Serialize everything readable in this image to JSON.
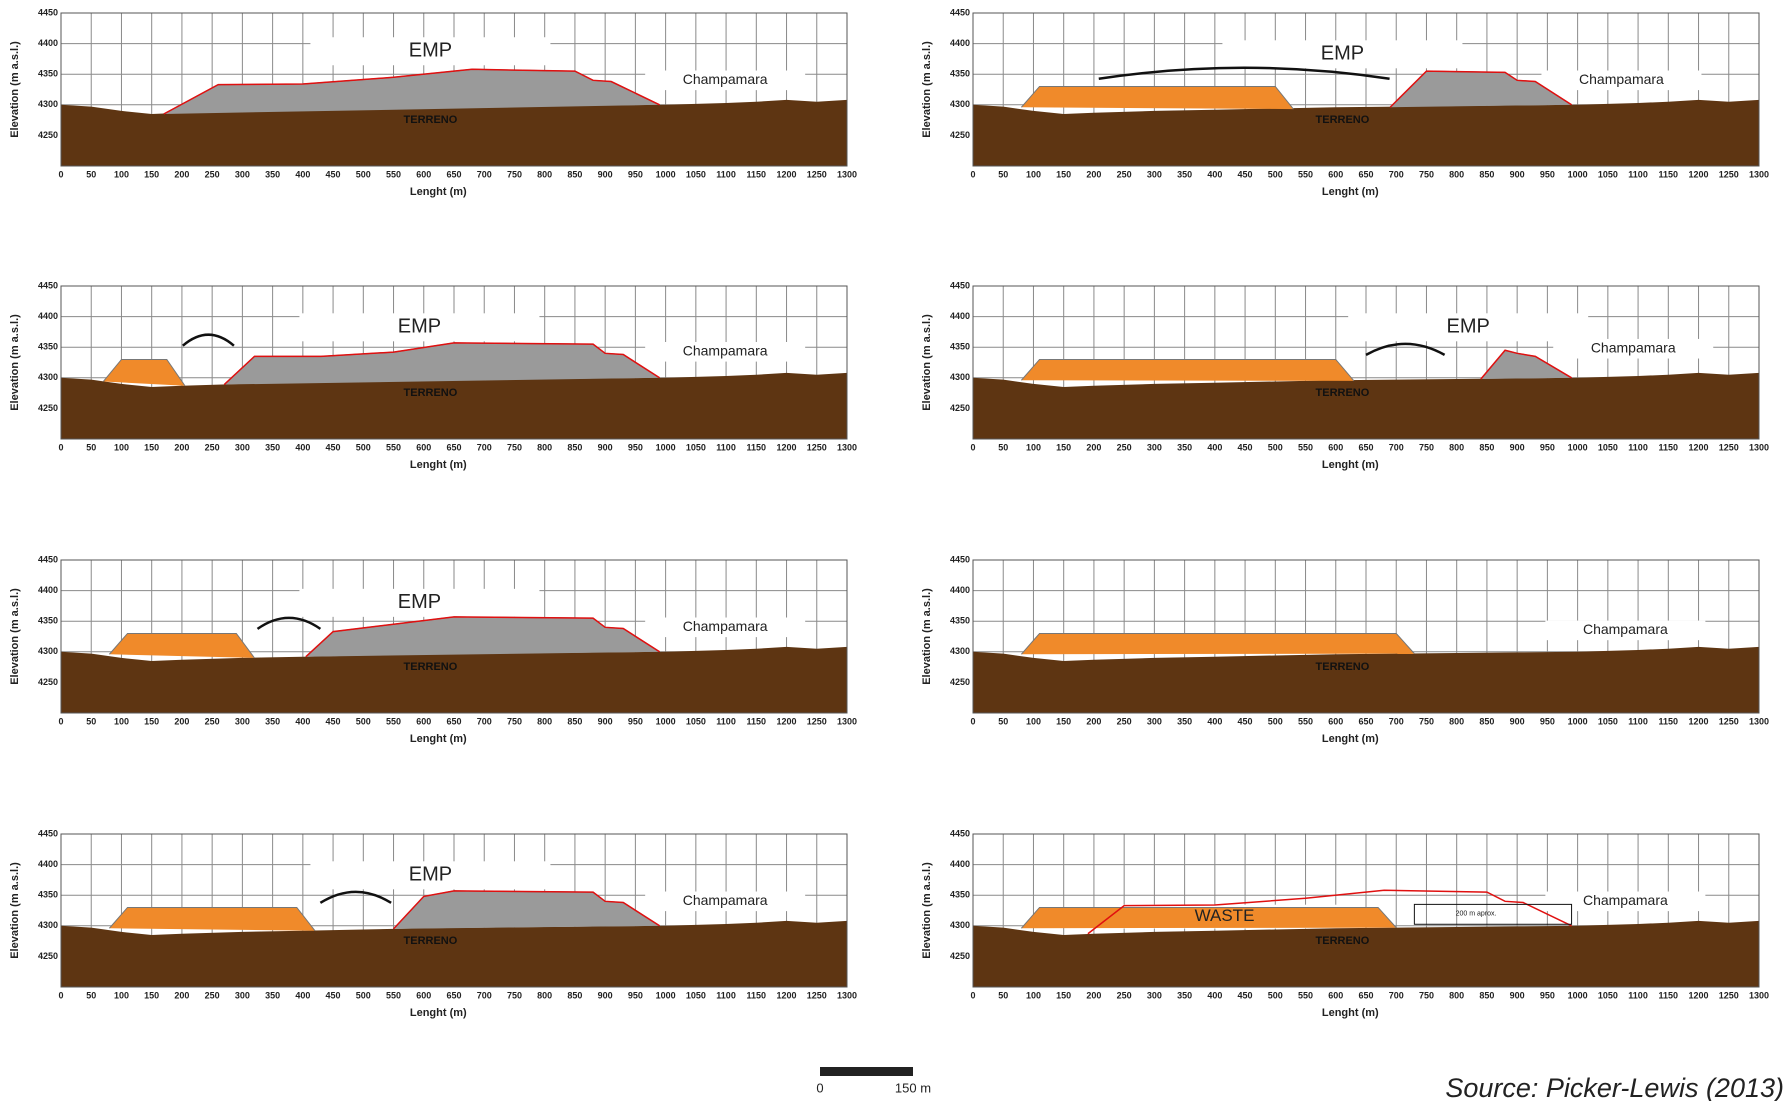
{
  "chart_data": [
    {
      "type": "section",
      "xlabel": "Lenght (m)",
      "ylabel": "Elevation (m a.s.l.)",
      "xlim": [
        0,
        1300
      ],
      "ylim": [
        4200,
        4450
      ],
      "xticks": [
        0,
        50,
        100,
        150,
        200,
        250,
        300,
        350,
        400,
        450,
        500,
        550,
        600,
        650,
        700,
        750,
        800,
        850,
        900,
        950,
        1000,
        1050,
        1100,
        1150,
        1200,
        1250,
        1300
      ],
      "yticks": [
        4250,
        4300,
        4350,
        4400,
        4450
      ],
      "ground": {
        "x": [
          0,
          50,
          100,
          150,
          200,
          300,
          400,
          500,
          600,
          700,
          800,
          900,
          1000,
          1100,
          1150,
          1200,
          1250,
          1300
        ],
        "y": [
          4300,
          4297,
          4290,
          4285,
          4287,
          4290,
          4292,
          4294,
          4296,
          4297,
          4298,
          4299,
          4300,
          4303,
          4305,
          4308,
          4305,
          4308
        ]
      },
      "ground_label": "TERRENO",
      "labels": [
        "EMP",
        "Champamara"
      ],
      "orange": [],
      "gray": [
        {
          "x": [
            170,
            260,
            400,
            550,
            680,
            850,
            880,
            910,
            990
          ],
          "y": [
            4285,
            4333,
            4334,
            4345,
            4358,
            4355,
            4340,
            4338,
            4300
          ]
        }
      ]
    },
    {
      "type": "section",
      "xlabel": "Lenght (m)",
      "ylabel": "Elevation (m a.s.l.)",
      "xlim": [
        0,
        1300
      ],
      "ylim": [
        4200,
        4450
      ],
      "xticks": [
        0,
        50,
        100,
        150,
        200,
        250,
        300,
        350,
        400,
        450,
        500,
        550,
        600,
        650,
        700,
        750,
        800,
        850,
        900,
        950,
        1000,
        1050,
        1100,
        1150,
        1200,
        1250,
        1300
      ],
      "yticks": [
        4250,
        4300,
        4350,
        4400,
        4450
      ],
      "ground": {
        "x": [
          0,
          50,
          100,
          150,
          200,
          300,
          400,
          500,
          600,
          700,
          800,
          900,
          1000,
          1100,
          1150,
          1200,
          1250,
          1300
        ],
        "y": [
          4300,
          4297,
          4290,
          4285,
          4287,
          4290,
          4292,
          4294,
          4296,
          4297,
          4298,
          4299,
          4300,
          4303,
          4305,
          4308,
          4305,
          4308
        ]
      },
      "ground_label": "TERRENO",
      "labels": [
        "EMP",
        "Champamara"
      ],
      "orange": [
        {
          "x": [
            80,
            110,
            500,
            530
          ],
          "y": [
            4296,
            4330,
            4330,
            4293
          ]
        }
      ],
      "gray": [
        {
          "x": [
            690,
            750,
            880,
            900,
            930,
            990
          ],
          "y": [
            4296,
            4355,
            4353,
            4340,
            4338,
            4300
          ]
        }
      ]
    },
    {
      "type": "section",
      "xlabel": "Lenght (m)",
      "ylabel": "Elevation (m a.s.l.)",
      "xlim": [
        0,
        1300
      ],
      "ylim": [
        4200,
        4450
      ],
      "xticks": [
        0,
        50,
        100,
        150,
        200,
        250,
        300,
        350,
        400,
        450,
        500,
        550,
        600,
        650,
        700,
        750,
        800,
        850,
        900,
        950,
        1000,
        1050,
        1100,
        1150,
        1200,
        1250,
        1300
      ],
      "yticks": [
        4250,
        4300,
        4350,
        4400,
        4450
      ],
      "ground": {
        "x": [
          0,
          50,
          100,
          150,
          200,
          300,
          400,
          500,
          600,
          700,
          800,
          900,
          1000,
          1100,
          1150,
          1200,
          1250,
          1300
        ],
        "y": [
          4300,
          4297,
          4290,
          4285,
          4287,
          4290,
          4292,
          4294,
          4296,
          4297,
          4298,
          4299,
          4300,
          4303,
          4305,
          4308,
          4305,
          4308
        ]
      },
      "ground_label": "TERRENO",
      "labels": [
        "EMP",
        "Champamara"
      ],
      "orange": [
        {
          "x": [
            70,
            100,
            175,
            205
          ],
          "y": [
            4294,
            4330,
            4330,
            4287
          ]
        }
      ],
      "gray": [
        {
          "x": [
            270,
            320,
            430,
            550,
            650,
            880,
            900,
            930,
            990
          ],
          "y": [
            4289,
            4335,
            4335,
            4342,
            4357,
            4355,
            4340,
            4338,
            4300
          ]
        }
      ]
    },
    {
      "type": "section",
      "xlabel": "Lenght (m)",
      "ylabel": "Elevation (m a.s.l.)",
      "xlim": [
        0,
        1300
      ],
      "ylim": [
        4200,
        4450
      ],
      "xticks": [
        0,
        50,
        100,
        150,
        200,
        250,
        300,
        350,
        400,
        450,
        500,
        550,
        600,
        650,
        700,
        750,
        800,
        850,
        900,
        950,
        1000,
        1050,
        1100,
        1150,
        1200,
        1250,
        1300
      ],
      "yticks": [
        4250,
        4300,
        4350,
        4400,
        4450
      ],
      "ground": {
        "x": [
          0,
          50,
          100,
          150,
          200,
          300,
          400,
          500,
          600,
          700,
          800,
          900,
          1000,
          1100,
          1150,
          1200,
          1250,
          1300
        ],
        "y": [
          4300,
          4297,
          4290,
          4285,
          4287,
          4290,
          4292,
          4294,
          4296,
          4297,
          4298,
          4299,
          4300,
          4303,
          4305,
          4308,
          4305,
          4308
        ]
      },
      "ground_label": "TERRENO",
      "labels": [
        "EMP",
        "Champamara"
      ],
      "orange": [
        {
          "x": [
            80,
            110,
            600,
            630
          ],
          "y": [
            4296,
            4330,
            4330,
            4295
          ]
        }
      ],
      "gray": [
        {
          "x": [
            840,
            880,
            900,
            930,
            990
          ],
          "y": [
            4298,
            4345,
            4340,
            4335,
            4300
          ]
        }
      ]
    },
    {
      "type": "section",
      "xlabel": "Lenght (m)",
      "ylabel": "Elevation (m a.s.l.)",
      "xlim": [
        0,
        1300
      ],
      "ylim": [
        4200,
        4450
      ],
      "xticks": [
        0,
        50,
        100,
        150,
        200,
        250,
        300,
        350,
        400,
        450,
        500,
        550,
        600,
        650,
        700,
        750,
        800,
        850,
        900,
        950,
        1000,
        1050,
        1100,
        1150,
        1200,
        1250,
        1300
      ],
      "yticks": [
        4250,
        4300,
        4350,
        4400,
        4450
      ],
      "ground": {
        "x": [
          0,
          50,
          100,
          150,
          200,
          300,
          400,
          500,
          600,
          700,
          800,
          900,
          1000,
          1100,
          1150,
          1200,
          1250,
          1300
        ],
        "y": [
          4300,
          4297,
          4290,
          4285,
          4287,
          4290,
          4292,
          4294,
          4296,
          4297,
          4298,
          4299,
          4300,
          4303,
          4305,
          4308,
          4305,
          4308
        ]
      },
      "ground_label": "TERRENO",
      "labels": [
        "EMP",
        "Champamara"
      ],
      "orange": [
        {
          "x": [
            80,
            110,
            290,
            320
          ],
          "y": [
            4296,
            4330,
            4330,
            4290
          ]
        }
      ],
      "gray": [
        {
          "x": [
            405,
            450,
            550,
            650,
            880,
            900,
            930,
            990
          ],
          "y": [
            4292,
            4333,
            4345,
            4357,
            4355,
            4340,
            4338,
            4300
          ]
        }
      ]
    },
    {
      "type": "section",
      "xlabel": "Lenght (m)",
      "ylabel": "Elevation (m a.s.l.)",
      "xlim": [
        0,
        1300
      ],
      "ylim": [
        4200,
        4450
      ],
      "xticks": [
        0,
        50,
        100,
        150,
        200,
        250,
        300,
        350,
        400,
        450,
        500,
        550,
        600,
        650,
        700,
        750,
        800,
        850,
        900,
        950,
        1000,
        1050,
        1100,
        1150,
        1200,
        1250,
        1300
      ],
      "yticks": [
        4250,
        4300,
        4350,
        4400,
        4450
      ],
      "ground": {
        "x": [
          0,
          50,
          100,
          150,
          200,
          300,
          400,
          500,
          600,
          700,
          800,
          900,
          1000,
          1100,
          1150,
          1200,
          1250,
          1300
        ],
        "y": [
          4300,
          4297,
          4290,
          4285,
          4287,
          4290,
          4292,
          4294,
          4296,
          4297,
          4298,
          4299,
          4300,
          4303,
          4305,
          4308,
          4305,
          4308
        ]
      },
      "ground_label": "TERRENO",
      "labels": [
        "Champamara"
      ],
      "orange": [
        {
          "x": [
            80,
            110,
            700,
            730
          ],
          "y": [
            4296,
            4330,
            4330,
            4297
          ]
        }
      ],
      "gray": []
    },
    {
      "type": "section",
      "xlabel": "Lenght (m)",
      "ylabel": "Elevation (m a.s.l.)",
      "xlim": [
        0,
        1300
      ],
      "ylim": [
        4200,
        4450
      ],
      "xticks": [
        0,
        50,
        100,
        150,
        200,
        250,
        300,
        350,
        400,
        450,
        500,
        550,
        600,
        650,
        700,
        750,
        800,
        850,
        900,
        950,
        1000,
        1050,
        1100,
        1150,
        1200,
        1250,
        1300
      ],
      "yticks": [
        4250,
        4300,
        4350,
        4400,
        4450
      ],
      "ground": {
        "x": [
          0,
          50,
          100,
          150,
          200,
          300,
          400,
          500,
          600,
          700,
          800,
          900,
          1000,
          1100,
          1150,
          1200,
          1250,
          1300
        ],
        "y": [
          4300,
          4297,
          4290,
          4285,
          4287,
          4290,
          4292,
          4294,
          4296,
          4297,
          4298,
          4299,
          4300,
          4303,
          4305,
          4308,
          4305,
          4308
        ]
      },
      "ground_label": "TERRENO",
      "labels": [
        "EMP",
        "Champamara"
      ],
      "orange": [
        {
          "x": [
            80,
            110,
            390,
            420
          ],
          "y": [
            4296,
            4330,
            4330,
            4292
          ]
        }
      ],
      "gray": [
        {
          "x": [
            550,
            600,
            650,
            880,
            900,
            930,
            990
          ],
          "y": [
            4295,
            4348,
            4357,
            4355,
            4340,
            4338,
            4300
          ]
        }
      ]
    },
    {
      "type": "section",
      "xlabel": "Lenght (m)",
      "ylabel": "Elevation (m a.s.l.)",
      "xlim": [
        0,
        1300
      ],
      "ylim": [
        4200,
        4450
      ],
      "xticks": [
        0,
        50,
        100,
        150,
        200,
        250,
        300,
        350,
        400,
        450,
        500,
        550,
        600,
        650,
        700,
        750,
        800,
        850,
        900,
        950,
        1000,
        1050,
        1100,
        1150,
        1200,
        1250,
        1300
      ],
      "yticks": [
        4250,
        4300,
        4350,
        4400,
        4450
      ],
      "ground": {
        "x": [
          0,
          50,
          100,
          150,
          200,
          300,
          400,
          500,
          600,
          700,
          800,
          900,
          1000,
          1100,
          1150,
          1200,
          1250,
          1300
        ],
        "y": [
          4300,
          4297,
          4290,
          4285,
          4287,
          4290,
          4292,
          4294,
          4296,
          4297,
          4298,
          4299,
          4300,
          4303,
          4305,
          4308,
          4305,
          4308
        ]
      },
      "ground_label": "TERRENO",
      "labels": [
        "WASTE",
        "Champamara",
        "200 m aprox."
      ],
      "orange": [
        {
          "x": [
            80,
            110,
            670,
            700
          ],
          "y": [
            4296,
            4330,
            4330,
            4297
          ]
        }
      ],
      "gray": [],
      "outline": {
        "x": [
          190,
          250,
          400,
          550,
          680,
          850,
          880,
          910,
          990
        ],
        "y": [
          4287,
          4333,
          4334,
          4345,
          4358,
          4355,
          4340,
          4338,
          4300
        ]
      }
    }
  ],
  "scale_bar": {
    "labels": [
      "0",
      "150 m"
    ]
  },
  "source": "Source: Picker-Lewis (2013)"
}
